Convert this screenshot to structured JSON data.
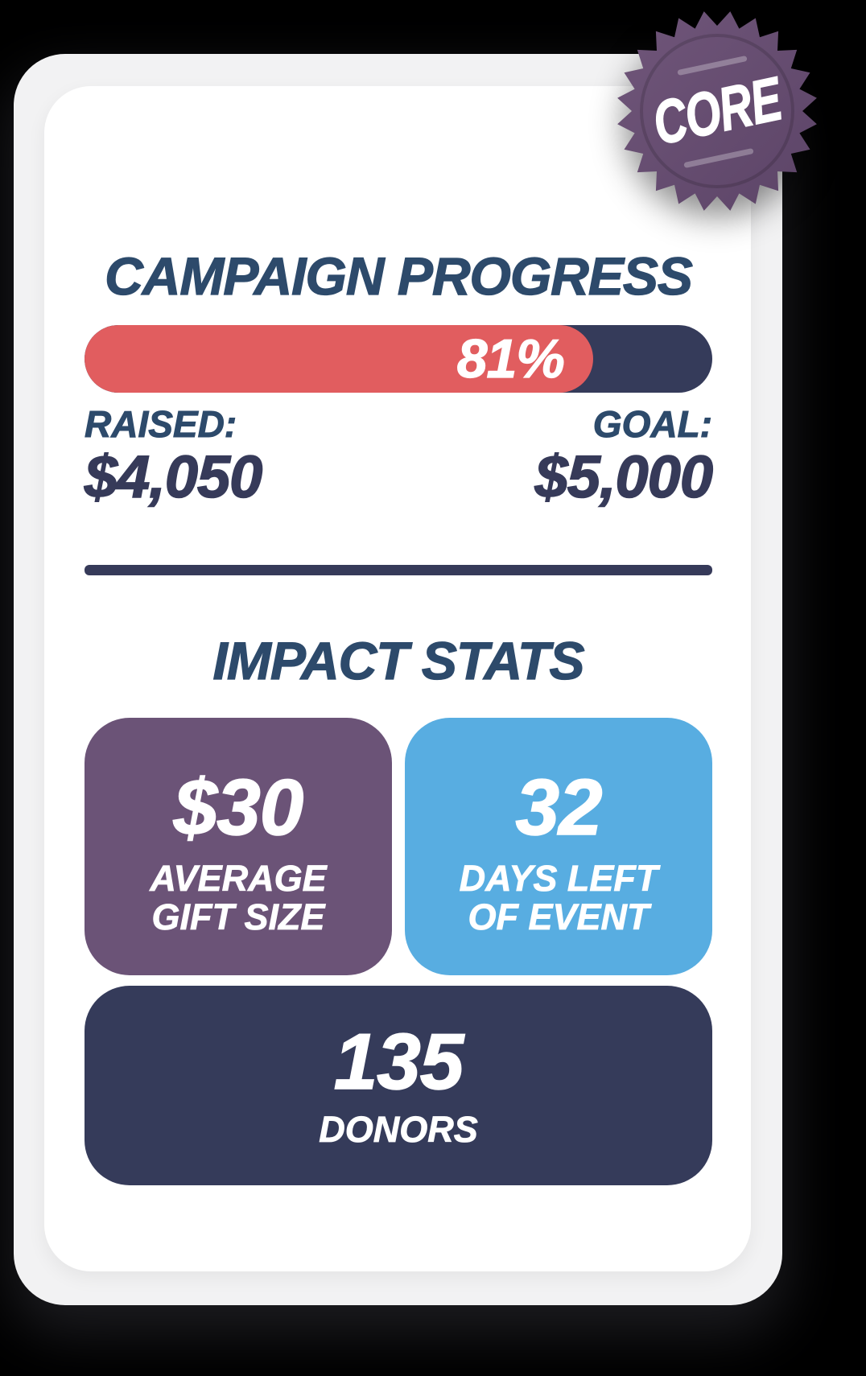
{
  "badge": {
    "label": "CORE",
    "color_start": "#70567a",
    "color_end": "#5c4467"
  },
  "campaign": {
    "title": "CAMPAIGN PROGRESS",
    "progress_label": "81%",
    "progress_percent": 81,
    "raised_label": "RAISED:",
    "raised_amount": "$4,050",
    "goal_label": "GOAL:",
    "goal_amount": "$5,000",
    "bar_fill_color": "#e15d5f",
    "bar_track_color": "#353b5a"
  },
  "impact": {
    "title": "IMPACT STATS",
    "stats": [
      {
        "value": "$30",
        "label_lines": [
          "AVERAGE",
          "GIFT SIZE"
        ],
        "color": "#6b5377"
      },
      {
        "value": "32",
        "label_lines": [
          "DAYS LEFT",
          "OF EVENT"
        ],
        "color": "#58ade1"
      },
      {
        "value": "135",
        "label_lines": [
          "DONORS"
        ],
        "color": "#353b5a"
      }
    ]
  },
  "colors": {
    "heading": "#2d4a6b",
    "navy": "#353b5a",
    "red": "#e15d5f",
    "purple": "#6b5377",
    "blue": "#58ade1",
    "card_bg": "#ffffff",
    "frame_bg": "#f2f2f3"
  }
}
